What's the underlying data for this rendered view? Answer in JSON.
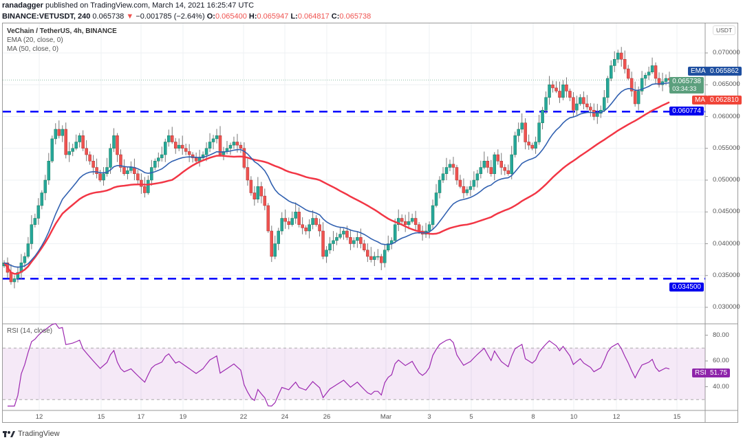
{
  "header": {
    "author": "ranadagger",
    "published": "published on TradingView.com, March 14, 2021 16:25:47 UTC",
    "symbol": "BINANCE:VETUSDT, 240",
    "last": "0.065738",
    "change": "−0.001785 (−2.64%)",
    "o_label": "O:",
    "o": "0.065400",
    "h_label": "H:",
    "h": "0.065947",
    "l_label": "L:",
    "l": "0.064817",
    "c_label": "C:",
    "c": "0.065738",
    "down_icon": "triangle-down-icon"
  },
  "legend": {
    "title": "VeChain / TetherUS, 4h, BINANCE",
    "ema": "EMA (20, close, 0)",
    "ma": "MA (50, close, 0)",
    "rsi": "RSI (14, close)"
  },
  "badges": {
    "currency": "USDT",
    "ema_label": "EMA",
    "ema_value": "0.065862",
    "price_value": "0.065738",
    "countdown": "03:34:33",
    "ma_label": "MA",
    "ma_value": "0.062810",
    "upper_line": "0.060774",
    "lower_line": "0.034500",
    "rsi_label": "RSI",
    "rsi_value": "51.75"
  },
  "footer": {
    "brand": "TradingView"
  },
  "colors": {
    "up": "#26a69a",
    "down": "#ef5350",
    "ema": "#2962ff",
    "ma": "#f23645",
    "hline": "#0000ff",
    "rsi": "#9c27b0"
  },
  "chart_data": {
    "type": "candlestick",
    "title": "VeChain / TetherUS, 4h, BINANCE",
    "interval": "4h",
    "ylim": [
      0.0275,
      0.0735
    ],
    "yticks": [
      "0.070000",
      "0.065000",
      "0.060000",
      "0.055000",
      "0.050000",
      "0.045000",
      "0.040000",
      "0.035000",
      "0.030000"
    ],
    "xticks": [
      "12",
      "15",
      "17",
      "19",
      "22",
      "24",
      "26",
      "Mar",
      "3",
      "5",
      "8",
      "10",
      "12",
      "15"
    ],
    "horizontal_lines": [
      0.060774,
      0.0345
    ],
    "closes": [
      0.037,
      0.0355,
      0.034,
      0.0345,
      0.0355,
      0.037,
      0.038,
      0.04,
      0.043,
      0.044,
      0.046,
      0.048,
      0.05,
      0.053,
      0.0565,
      0.058,
      0.057,
      0.058,
      0.054,
      0.0545,
      0.055,
      0.056,
      0.057,
      0.055,
      0.054,
      0.053,
      0.052,
      0.051,
      0.05,
      0.051,
      0.052,
      0.055,
      0.057,
      0.054,
      0.052,
      0.051,
      0.0515,
      0.052,
      0.051,
      0.05,
      0.049,
      0.048,
      0.05,
      0.052,
      0.053,
      0.0535,
      0.054,
      0.056,
      0.057,
      0.056,
      0.055,
      0.0555,
      0.055,
      0.0545,
      0.054,
      0.0535,
      0.053,
      0.0535,
      0.054,
      0.055,
      0.056,
      0.0565,
      0.057,
      0.054,
      0.0545,
      0.055,
      0.0555,
      0.056,
      0.0555,
      0.055,
      0.052,
      0.05,
      0.048,
      0.047,
      0.049,
      0.0475,
      0.046,
      0.042,
      0.038,
      0.04,
      0.042,
      0.044,
      0.0435,
      0.043,
      0.044,
      0.045,
      0.043,
      0.0425,
      0.042,
      0.043,
      0.044,
      0.043,
      0.042,
      0.038,
      0.039,
      0.04,
      0.0405,
      0.041,
      0.0415,
      0.042,
      0.041,
      0.04,
      0.0405,
      0.041,
      0.04,
      0.039,
      0.038,
      0.0375,
      0.038,
      0.038,
      0.037,
      0.039,
      0.04,
      0.0405,
      0.043,
      0.044,
      0.0435,
      0.043,
      0.0435,
      0.044,
      0.043,
      0.042,
      0.0415,
      0.042,
      0.043,
      0.046,
      0.048,
      0.05,
      0.051,
      0.052,
      0.0525,
      0.052,
      0.05,
      0.049,
      0.048,
      0.0485,
      0.049,
      0.05,
      0.051,
      0.052,
      0.053,
      0.052,
      0.051,
      0.054,
      0.053,
      0.052,
      0.0515,
      0.051,
      0.054,
      0.057,
      0.058,
      0.059,
      0.056,
      0.0555,
      0.055,
      0.056,
      0.059,
      0.061,
      0.063,
      0.065,
      0.0645,
      0.064,
      0.063,
      0.065,
      0.064,
      0.063,
      0.061,
      0.062,
      0.063,
      0.062,
      0.0615,
      0.061,
      0.06,
      0.0605,
      0.061,
      0.063,
      0.066,
      0.068,
      0.069,
      0.07,
      0.069,
      0.0675,
      0.066,
      0.064,
      0.062,
      0.064,
      0.066,
      0.0665,
      0.067,
      0.068,
      0.066,
      0.065,
      0.0655,
      0.066,
      0.065738
    ],
    "indicators": [
      {
        "name": "EMA (20, close, 0)",
        "period": 20
      },
      {
        "name": "MA (50, close, 0)",
        "period": 50
      }
    ],
    "rsi": {
      "name": "RSI (14, close)",
      "period": 14,
      "ylim": [
        25,
        90
      ],
      "band": [
        30,
        70
      ],
      "yticks": [
        "80.00",
        "60.00",
        "40.00"
      ],
      "last": 51.75
    }
  }
}
